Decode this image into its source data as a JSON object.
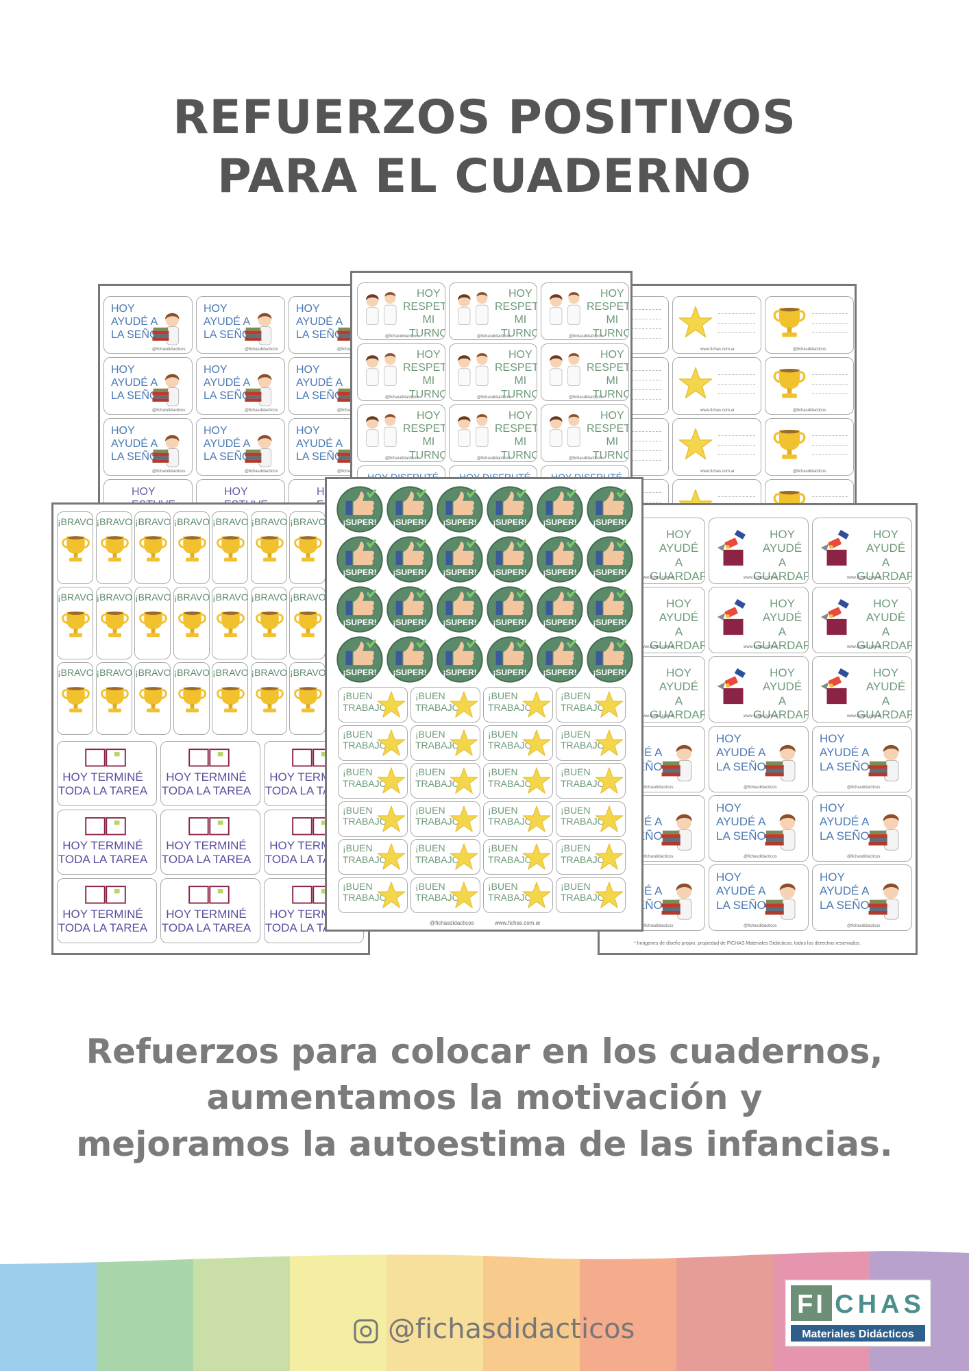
{
  "header": {
    "title_lines": [
      "REFUERZOS POSITIVOS",
      "PARA EL CUADERNO"
    ]
  },
  "stickers": {
    "helped_teacher": "HOY\nAYUDÉ A\nLA SEÑO",
    "respected_turn": "HOY\nRESPETÉ\nMI TURNO",
    "was_here": "HOY ESTUVE",
    "enjoyed": "HOY DISFRUTÉ EN",
    "bravo": "¡BRAVO!",
    "super": "¡SUPER!",
    "good_job": "¡BUEN\nTRABAJO!",
    "homework": "HOY TERMINÉ\nTODA LA TAREA",
    "tidy": "HOY AYUDÉ\nA GUARDAR",
    "handle": "@fichasdidacticos",
    "web": "www.fichas.com.ar",
    "copyright": "* Imágenes de diseño propio, propiedad de FICHAS Materiales Didácticos, todos los derechos reservados."
  },
  "description": {
    "lines": [
      "Refuerzos para colocar en los cuadernos,",
      "aumentamos la motivación y",
      "mejoramos la autoestima de las infancias."
    ]
  },
  "footer": {
    "handle": "@fichasdidacticos",
    "logo": {
      "left": "FI",
      "right": "CHAS",
      "tagline": "Materiales Didácticos"
    }
  }
}
